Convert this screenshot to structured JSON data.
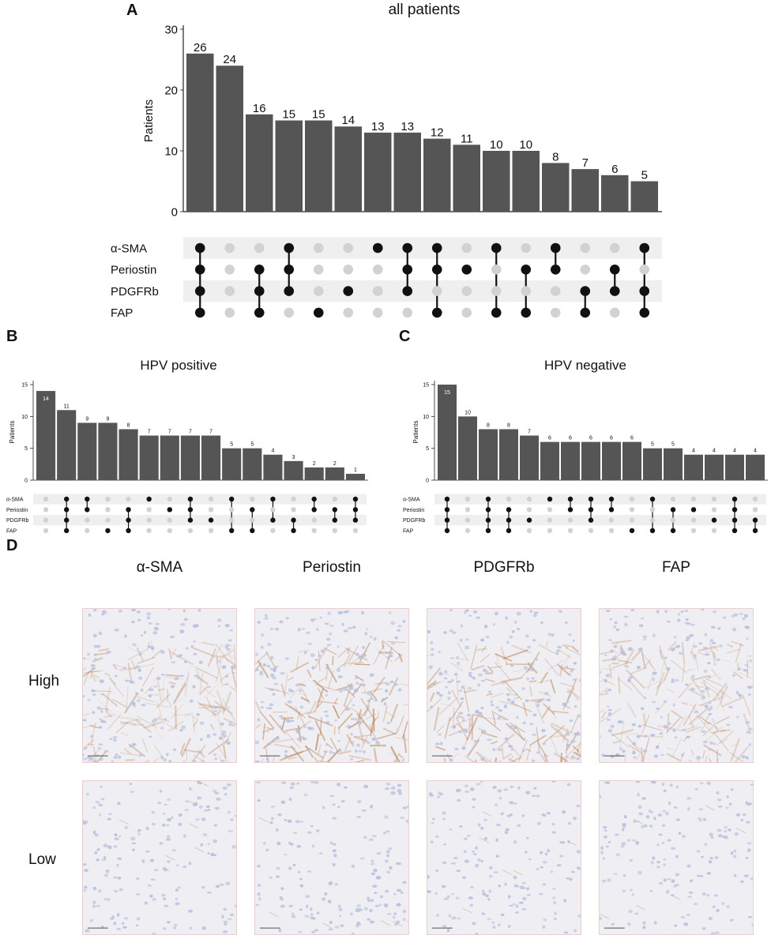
{
  "panels": {
    "a_letter": "A",
    "b_letter": "B",
    "c_letter": "C",
    "d_letter": "D"
  },
  "chart_data": [
    {
      "type": "bar",
      "panel": "A",
      "title": "all patients",
      "ylabel": "Patients",
      "ylim": [
        0,
        30
      ],
      "yticks": [
        0,
        10,
        20,
        30
      ],
      "sets": [
        "α-SMA",
        "Periostin",
        "PDGFRb",
        "FAP"
      ],
      "values": [
        26,
        24,
        16,
        15,
        15,
        14,
        13,
        13,
        12,
        11,
        10,
        10,
        8,
        7,
        6,
        5
      ],
      "value_labels": [
        "26",
        "24",
        "16",
        "15",
        "15",
        "14",
        "13",
        "13",
        "12",
        "11",
        "10",
        "10",
        "8",
        "7",
        "6",
        "5"
      ],
      "membership": [
        [
          1,
          1,
          1,
          1
        ],
        [
          0,
          0,
          0,
          0
        ],
        [
          0,
          1,
          1,
          1
        ],
        [
          1,
          1,
          1,
          0
        ],
        [
          0,
          0,
          0,
          1
        ],
        [
          0,
          0,
          1,
          0
        ],
        [
          1,
          0,
          0,
          0
        ],
        [
          1,
          1,
          1,
          0
        ],
        [
          1,
          1,
          0,
          1
        ],
        [
          0,
          1,
          0,
          0
        ],
        [
          1,
          0,
          0,
          1
        ],
        [
          0,
          1,
          0,
          1
        ],
        [
          1,
          1,
          0,
          0
        ],
        [
          0,
          0,
          1,
          1
        ],
        [
          0,
          1,
          1,
          0
        ],
        [
          1,
          0,
          1,
          1
        ]
      ]
    },
    {
      "type": "bar",
      "panel": "B",
      "title": "HPV positive",
      "ylabel": "Patients",
      "ylim": [
        0,
        15
      ],
      "yticks": [
        0,
        5,
        10,
        15
      ],
      "sets": [
        "α-SMA",
        "Periostin",
        "PDGFRb",
        "FAP"
      ],
      "values": [
        14,
        11,
        9,
        9,
        8,
        7,
        7,
        7,
        7,
        5,
        5,
        4,
        3,
        2,
        2,
        1
      ],
      "value_labels": [
        "14",
        "11",
        "9",
        "9",
        "8",
        "7",
        "7",
        "7",
        "7",
        "5",
        "5",
        "4",
        "3",
        "2",
        "2",
        "1"
      ],
      "membership": [
        [
          0,
          0,
          0,
          0
        ],
        [
          1,
          1,
          1,
          1
        ],
        [
          1,
          1,
          0,
          0
        ],
        [
          0,
          0,
          0,
          1
        ],
        [
          0,
          1,
          1,
          1
        ],
        [
          1,
          0,
          0,
          0
        ],
        [
          0,
          1,
          0,
          0
        ],
        [
          1,
          1,
          1,
          0
        ],
        [
          0,
          0,
          1,
          0
        ],
        [
          1,
          0,
          0,
          1
        ],
        [
          0,
          1,
          0,
          1
        ],
        [
          1,
          0,
          1,
          0
        ],
        [
          0,
          0,
          1,
          1
        ],
        [
          1,
          1,
          0,
          0
        ],
        [
          0,
          1,
          1,
          0
        ],
        [
          1,
          1,
          1,
          0
        ]
      ]
    },
    {
      "type": "bar",
      "panel": "C",
      "title": "HPV negative",
      "ylabel": "Patients",
      "ylim": [
        0,
        15
      ],
      "yticks": [
        0,
        5,
        10,
        15
      ],
      "sets": [
        "α-SMA",
        "Periostin",
        "PDGFRb",
        "FAP"
      ],
      "values": [
        15,
        10,
        8,
        8,
        7,
        6,
        6,
        6,
        6,
        6,
        5,
        5,
        4,
        4,
        4,
        4
      ],
      "value_labels": [
        "15",
        "10",
        "8",
        "8",
        "7",
        "6",
        "6",
        "6",
        "6",
        "6",
        "5",
        "5",
        "4",
        "4",
        "4",
        "4"
      ],
      "membership": [
        [
          1,
          1,
          1,
          1
        ],
        [
          0,
          0,
          0,
          0
        ],
        [
          1,
          1,
          1,
          1
        ],
        [
          0,
          1,
          1,
          1
        ],
        [
          0,
          0,
          1,
          0
        ],
        [
          1,
          0,
          0,
          0
        ],
        [
          1,
          1,
          0,
          0
        ],
        [
          1,
          1,
          1,
          0
        ],
        [
          1,
          1,
          0,
          0
        ],
        [
          0,
          0,
          0,
          1
        ],
        [
          1,
          0,
          0,
          1
        ],
        [
          0,
          1,
          0,
          1
        ],
        [
          0,
          1,
          0,
          0
        ],
        [
          0,
          0,
          1,
          0
        ],
        [
          1,
          1,
          1,
          1
        ],
        [
          0,
          0,
          1,
          1
        ]
      ]
    }
  ],
  "ihc": {
    "stains": [
      "α-SMA",
      "Periostin",
      "PDGFRb",
      "FAP"
    ],
    "rows": [
      "High",
      "Low"
    ],
    "colors": {
      "background": "#eeeef3",
      "nuclei": "#b6bfdc",
      "brown_high": "#c48f62",
      "brown_strong": "#b97a4a"
    }
  }
}
